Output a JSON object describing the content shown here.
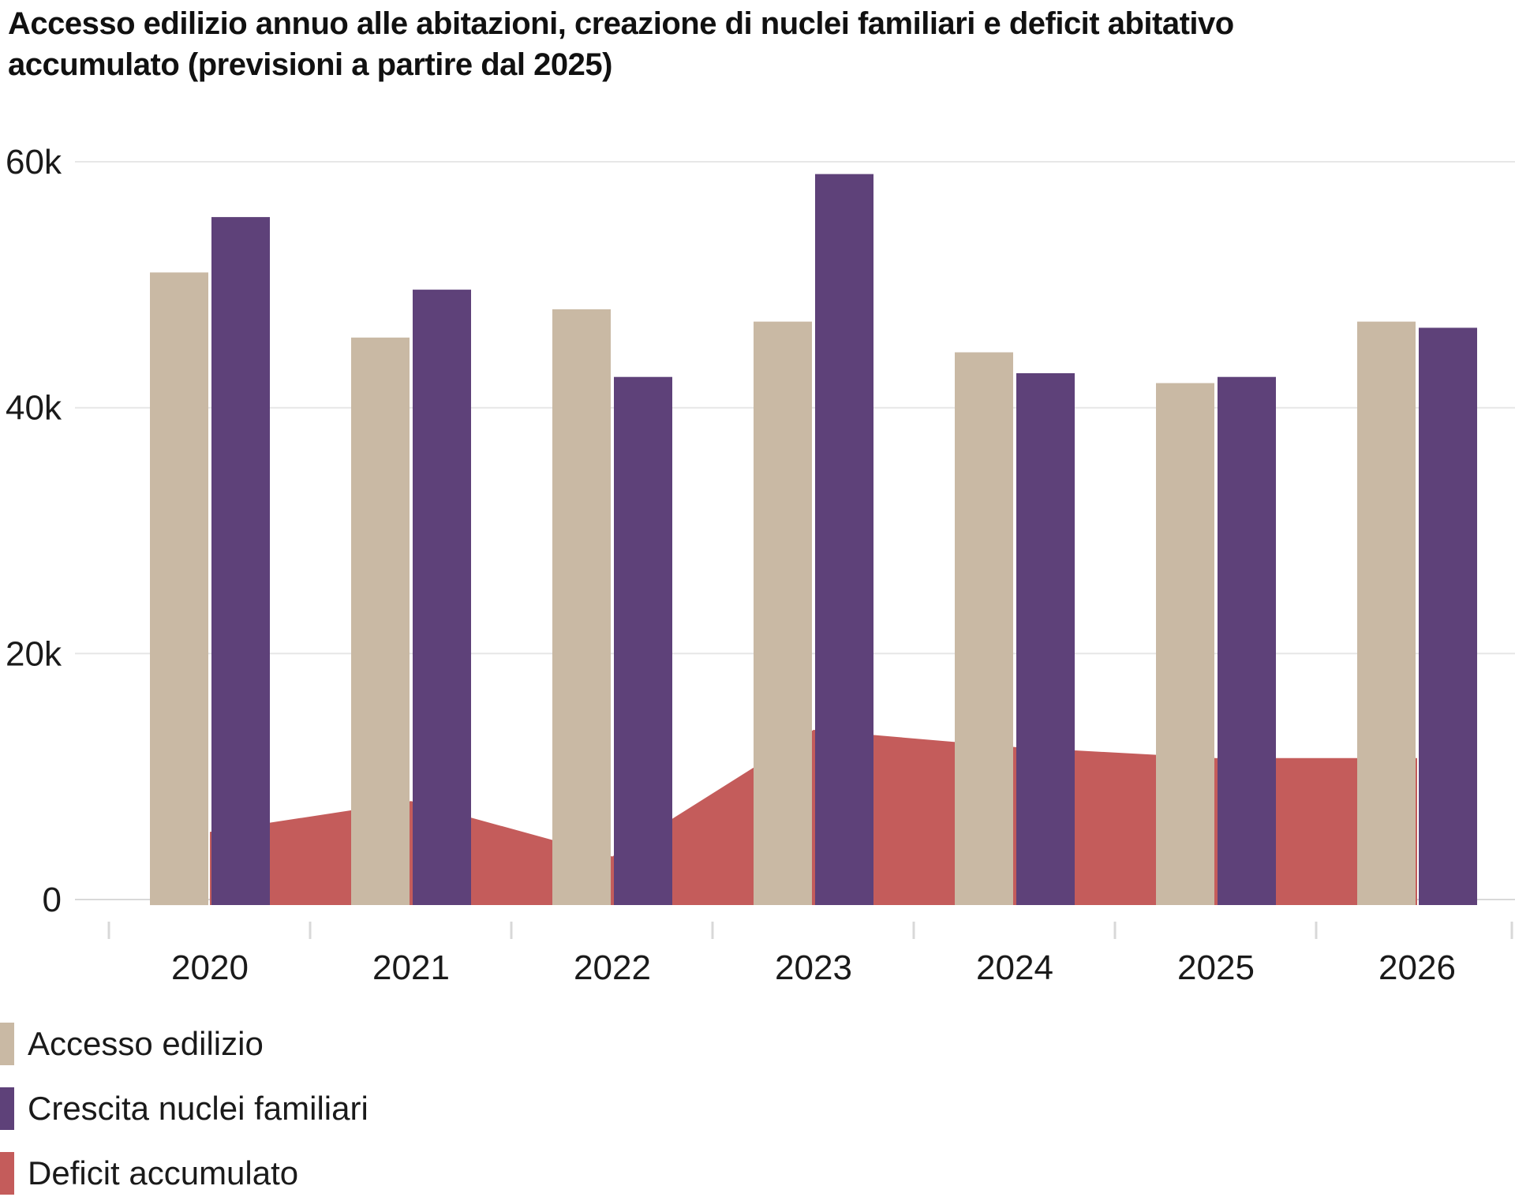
{
  "header": {
    "title_full": "Accesso edilizio annuo alle abitazioni, creazione di nuclei familiari e deficit abitativo accumulato (previsioni a partire dal 2025)",
    "title_line1": "Accesso edilizio annuo alle abitazioni, creazione di nuclei familiari e deficit abitativo",
    "title_line2": "accumulato (previsioni a partire dal 2025)"
  },
  "legend": {
    "items": [
      {
        "label": "Accesso edilizio"
      },
      {
        "label": "Crescita nuclei familiari"
      },
      {
        "label": "Deficit accumulato"
      }
    ]
  },
  "chart_data": {
    "type": "bar",
    "subtype": "grouped bars with overlaid area series",
    "title": "Accesso edilizio annuo alle abitazioni, creazione di nuclei familiari e deficit abitativo accumulato (previsioni a partire dal 2025)",
    "categories": [
      "2020",
      "2021",
      "2022",
      "2023",
      "2024",
      "2025",
      "2026"
    ],
    "series": [
      {
        "name": "Accesso edilizio",
        "type": "bar",
        "color": "#c9b9a4",
        "values": [
          51000,
          45700,
          48000,
          47000,
          44500,
          42000,
          47000
        ]
      },
      {
        "name": "Crescita nuclei familiari",
        "type": "bar",
        "color": "#5e4179",
        "values": [
          55500,
          49600,
          42500,
          59000,
          42800,
          42500,
          46500
        ]
      },
      {
        "name": "Deficit accumulato",
        "type": "area",
        "color": "#c45c5b",
        "values": [
          5500,
          8000,
          3500,
          13800,
          12400,
          11500,
          11500
        ]
      }
    ],
    "xlabel": "",
    "ylabel": "",
    "ylim": [
      0,
      60000
    ],
    "yticks": [
      {
        "value": 60000,
        "label": "60k"
      },
      {
        "value": 40000,
        "label": "40k"
      },
      {
        "value": 20000,
        "label": "20k"
      },
      {
        "value": 0,
        "label": "0"
      }
    ],
    "grid": "horizontal",
    "legend_position": "bottom-left",
    "forecast_note": "previsioni a partire dal 2025"
  },
  "colors": {
    "grid": "#e7e7e7",
    "axis_line": "#d9d9d9",
    "tick": "#d8d8d8",
    "text": "#1a1a1a",
    "background": "#ffffff"
  }
}
